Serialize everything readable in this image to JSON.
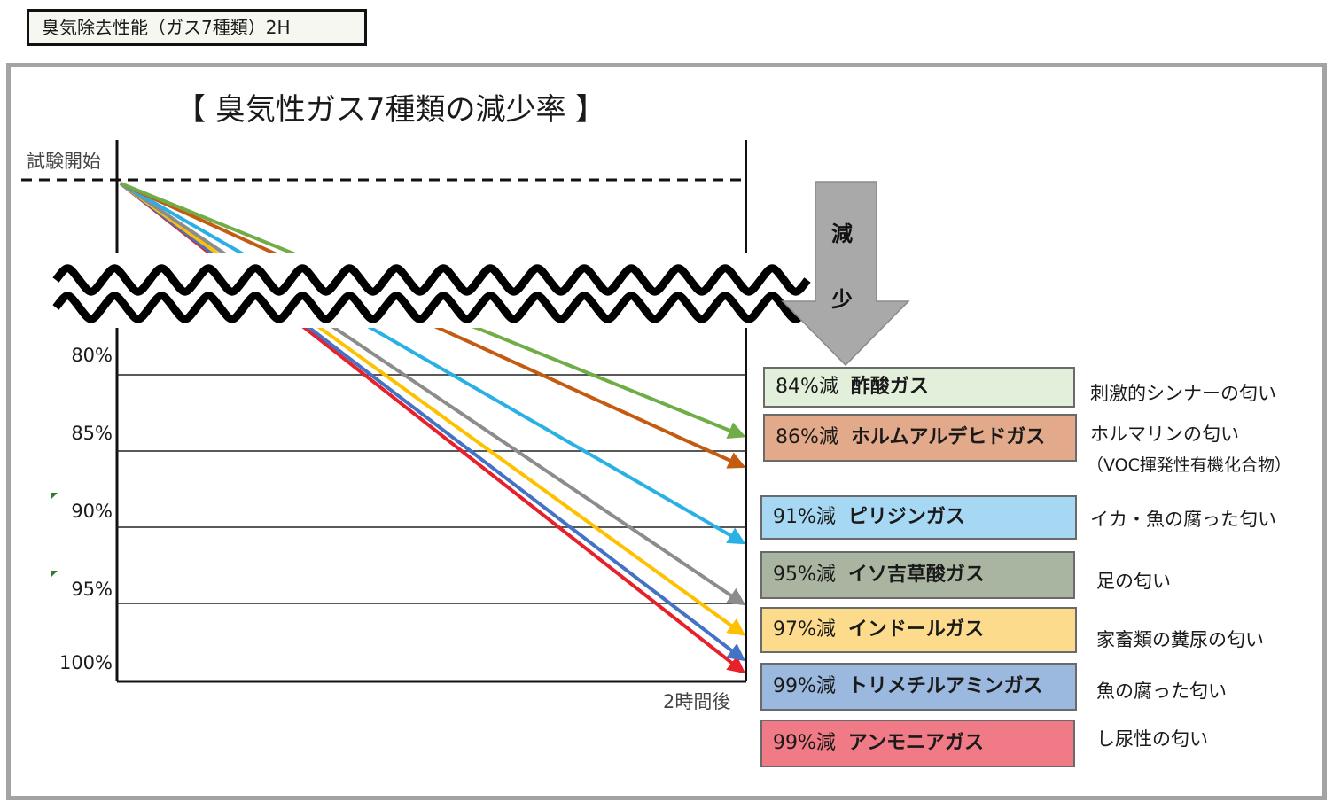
{
  "header": {
    "title": "臭気除去性能（ガス7種類）2H"
  },
  "chart_data": {
    "type": "line",
    "title": "【 臭気性ガス7種類の減少率 】",
    "start_label": "試験開始",
    "x_label": "2時間後",
    "y_ticks": [
      "80%",
      "85%",
      "90%",
      "95%",
      "100%"
    ],
    "ylim": [
      80,
      100
    ],
    "arrow_text": [
      "減",
      "少"
    ],
    "series": [
      {
        "reduction": 84,
        "pct_label": "84%減",
        "name": "酢酸ガス",
        "description": "刺激的シンナーの匂い",
        "color": "#70ad47",
        "fill": "#e2efda"
      },
      {
        "reduction": 86,
        "pct_label": "86%減",
        "name": "ホルムアルデヒドガス",
        "description": "ホルマリンの匂い",
        "description2": "（VOC揮発性有機化合物）",
        "color": "#c55a11",
        "fill": "#e3a98b"
      },
      {
        "reduction": 91,
        "pct_label": "91%減",
        "name": "ピリジンガス",
        "description": "イカ・魚の腐った匂い",
        "color": "#29b1e5",
        "fill": "#a7d8f3"
      },
      {
        "reduction": 95,
        "pct_label": "95%減",
        "name": "イソ吉草酸ガス",
        "description": "足の匂い",
        "color": "#8c8c8c",
        "fill": "#a9b5a0"
      },
      {
        "reduction": 97,
        "pct_label": "97%減",
        "name": "インドールガス",
        "description": "家畜類の糞尿の匂い",
        "color": "#ffc000",
        "fill": "#fcdc8c"
      },
      {
        "reduction": 99,
        "pct_label": "99%減",
        "name": "トリメチルアミンガス",
        "description": "魚の腐った匂い",
        "color": "#4472c4",
        "fill": "#9bb8df"
      },
      {
        "reduction": 99,
        "pct_label": "99%減",
        "name": "アンモニアガス",
        "description": "し尿性の匂い",
        "color": "#e8202a",
        "fill": "#f07a85"
      }
    ]
  }
}
